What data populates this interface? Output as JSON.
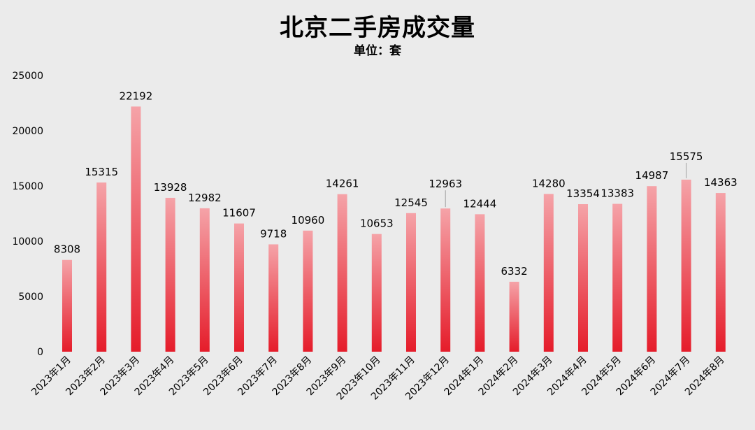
{
  "chart_data": {
    "type": "bar",
    "title": "北京二手房成交量",
    "subtitle": "单位：套",
    "categories": [
      "2023年1月",
      "2023年2月",
      "2023年3月",
      "2023年4月",
      "2023年5月",
      "2023年6月",
      "2023年7月",
      "2023年8月",
      "2023年9月",
      "2023年10月",
      "2023年11月",
      "2023年12月",
      "2024年1月",
      "2024年2月",
      "2024年3月",
      "2024年4月",
      "2024年5月",
      "2024年6月",
      "2024年7月",
      "2024年8月"
    ],
    "values": [
      8308,
      15315,
      22192,
      13928,
      12982,
      11607,
      9718,
      10960,
      14261,
      10653,
      12545,
      12963,
      12444,
      6332,
      14280,
      13354,
      13383,
      14987,
      15575,
      14363
    ],
    "ylim": [
      0,
      25000
    ],
    "yticks": [
      0,
      5000,
      10000,
      15000,
      20000,
      25000
    ],
    "grid": false,
    "legend": "none",
    "colors": {
      "bar_top": "#f5a3a8",
      "bar_bottom": "#e51c2a",
      "background": "#ebebeb",
      "leader_line": "#a0a0a0"
    }
  }
}
